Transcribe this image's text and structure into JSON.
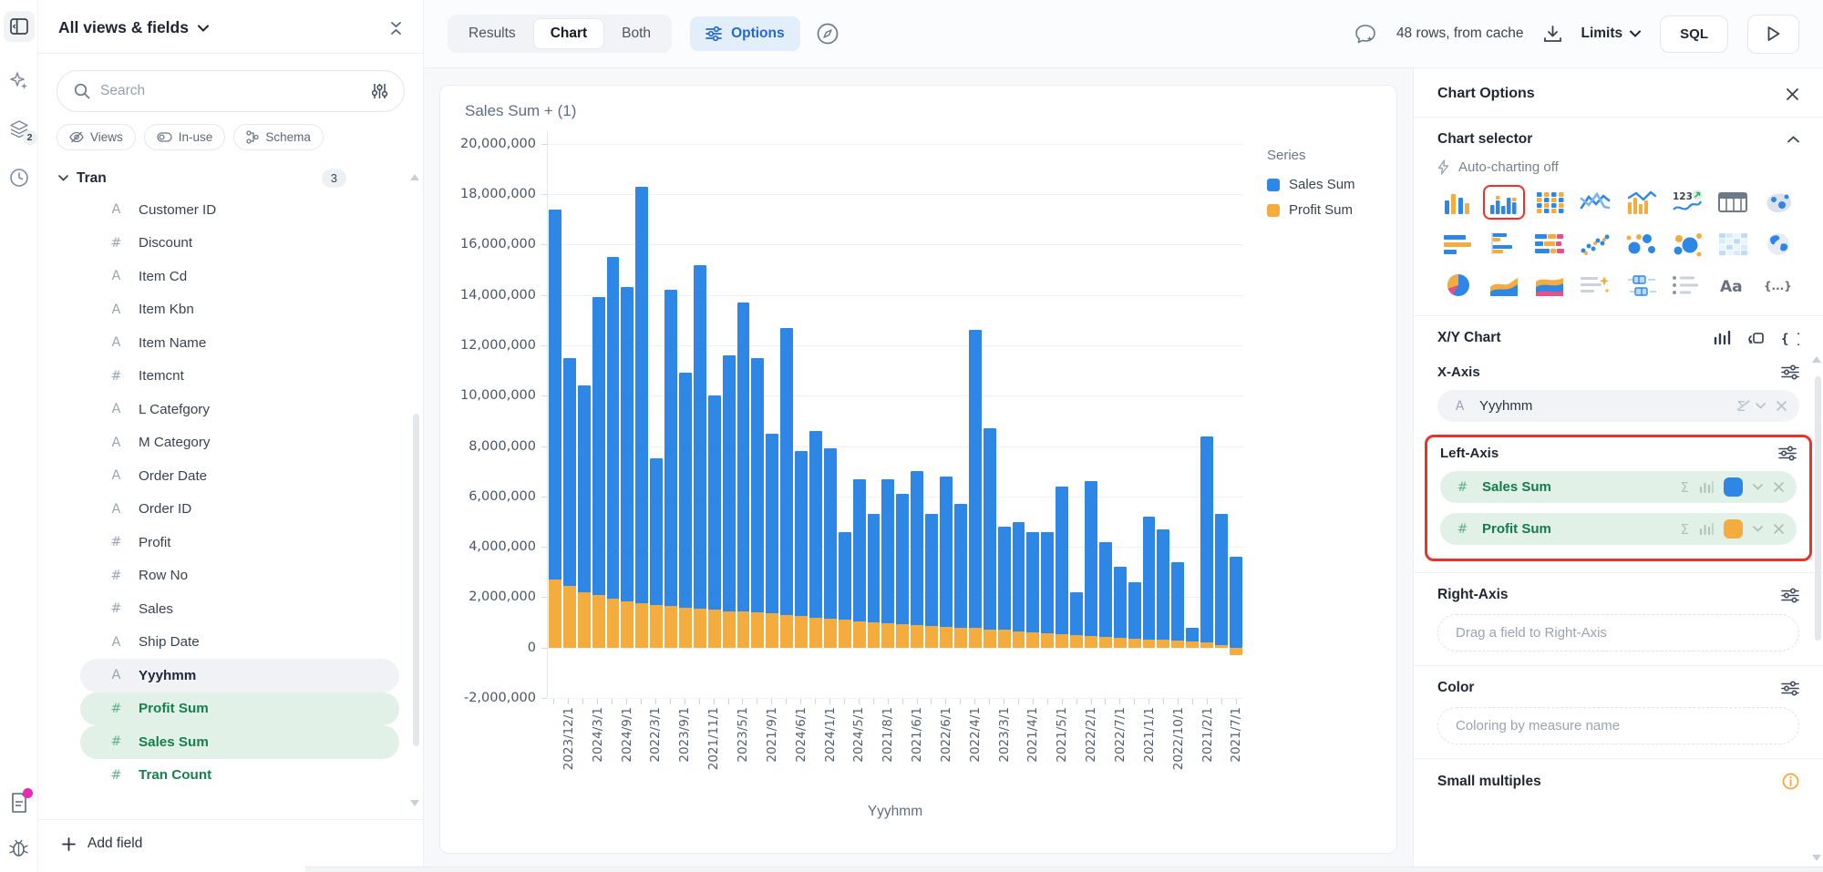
{
  "accent_colors": {
    "blue": "#2E87E5",
    "orange": "#F4AC3E",
    "green": "#157A4A",
    "annotation_red": "#E8332C"
  },
  "rail": {
    "icons": [
      "panel-toggle",
      "ai-sparkles",
      "layers",
      "history-clock",
      "notes-doc",
      "debug-bug"
    ],
    "layers_badge": "2"
  },
  "sidebar": {
    "title": "All views & fields",
    "search": {
      "placeholder": "Search"
    },
    "chips": [
      {
        "icon": "eye-off-icon",
        "label": "Views"
      },
      {
        "icon": "toggle-icon",
        "label": "In-use"
      },
      {
        "icon": "schema-icon",
        "label": "Schema"
      }
    ],
    "group": {
      "name": "Tran",
      "badge": "3"
    },
    "fields": [
      {
        "type": "text",
        "label": "Customer ID",
        "state": "normal"
      },
      {
        "type": "number",
        "label": "Discount",
        "state": "normal"
      },
      {
        "type": "text",
        "label": "Item Cd",
        "state": "normal"
      },
      {
        "type": "text",
        "label": "Item Kbn",
        "state": "normal"
      },
      {
        "type": "text",
        "label": "Item Name",
        "state": "normal"
      },
      {
        "type": "number",
        "label": "Itemcnt",
        "state": "normal"
      },
      {
        "type": "text",
        "label": "L Catefgory",
        "state": "normal"
      },
      {
        "type": "text",
        "label": "M Category",
        "state": "normal"
      },
      {
        "type": "text",
        "label": "Order Date",
        "state": "normal"
      },
      {
        "type": "text",
        "label": "Order ID",
        "state": "normal"
      },
      {
        "type": "number",
        "label": "Profit",
        "state": "normal"
      },
      {
        "type": "number",
        "label": "Row No",
        "state": "normal"
      },
      {
        "type": "number",
        "label": "Sales",
        "state": "normal"
      },
      {
        "type": "text",
        "label": "Ship Date",
        "state": "normal"
      },
      {
        "type": "text",
        "label": "Yyyhmm",
        "state": "selected-dimension"
      },
      {
        "type": "number",
        "label": "Profit Sum",
        "state": "selected-measure"
      },
      {
        "type": "number",
        "label": "Sales Sum",
        "state": "selected-measure"
      },
      {
        "type": "number",
        "label": "Tran Count",
        "state": "measure"
      }
    ],
    "add_field_label": "Add field"
  },
  "topbar": {
    "view_tabs": [
      "Results",
      "Chart",
      "Both"
    ],
    "active_tab": "Chart",
    "options_label": "Options",
    "status": "48 rows, from cache",
    "limits_label": "Limits",
    "sql_label": "SQL"
  },
  "chart_data": {
    "type": "bar",
    "bar_mode": "overlay",
    "title": "Sales Sum + (1)",
    "xlabel": "Yyyhmm",
    "ylabel": "",
    "ylim": [
      -2000000,
      20000000
    ],
    "ytick_step": 2000000,
    "grid": true,
    "legend_title": "Series",
    "legend_position": "right",
    "x_tick_labels": [
      "2023/12/1",
      "2024/3/1",
      "2024/9/1",
      "2022/3/1",
      "2023/9/1",
      "2021/11/1",
      "2023/5/1",
      "2021/9/1",
      "2024/6/1",
      "2024/1/1",
      "2024/5/1",
      "2021/8/1",
      "2021/6/1",
      "2022/6/1",
      "2022/4/1",
      "2023/3/1",
      "2021/4/1",
      "2021/5/1",
      "2022/2/1",
      "2022/7/1",
      "2021/1/1",
      "2022/10/1",
      "2021/2/1",
      "2021/7/1"
    ],
    "x_tick_note": "labels shown under every other bar (48 bars total, sorted by Profit Sum desc)",
    "series": [
      {
        "name": "Sales Sum",
        "color": "#2E87E5",
        "values": [
          17400000,
          11500000,
          10400000,
          13900000,
          15500000,
          14300000,
          18300000,
          7500000,
          14200000,
          10900000,
          15200000,
          10000000,
          11600000,
          13700000,
          11500000,
          8500000,
          12700000,
          7800000,
          8600000,
          7900000,
          4600000,
          6700000,
          5300000,
          6700000,
          6100000,
          7000000,
          5300000,
          6800000,
          5700000,
          12600000,
          8700000,
          4800000,
          5000000,
          4600000,
          4600000,
          6400000,
          2200000,
          6600000,
          4200000,
          3200000,
          2600000,
          5200000,
          4700000,
          3400000,
          800000,
          8400000,
          5300000,
          3600000
        ]
      },
      {
        "name": "Profit Sum",
        "color": "#F4AC3E",
        "values": [
          2700000,
          2450000,
          2200000,
          2100000,
          1950000,
          1850000,
          1750000,
          1700000,
          1650000,
          1600000,
          1550000,
          1500000,
          1450000,
          1420000,
          1400000,
          1350000,
          1300000,
          1250000,
          1200000,
          1150000,
          1100000,
          1050000,
          1000000,
          970000,
          930000,
          900000,
          870000,
          830000,
          800000,
          770000,
          730000,
          700000,
          650000,
          600000,
          570000,
          530000,
          500000,
          470000,
          430000,
          400000,
          370000,
          330000,
          300000,
          270000,
          230000,
          200000,
          100000,
          -300000
        ]
      }
    ]
  },
  "options_panel": {
    "title": "Chart Options",
    "chart_selector": {
      "label": "Chart selector",
      "auto_charting": "Auto-charting off",
      "selected_index": 1,
      "types": [
        "bar-grouped",
        "bar-vertical",
        "bar-stacked-grid",
        "line",
        "bar-line-combo",
        "kpi-number",
        "table",
        "map-bubbles",
        "bar-horizontal",
        "bar-horizontal-grouped",
        "bar-horizontal-stacked",
        "scatter",
        "bubble",
        "bubble-packed",
        "pivot-heatmap",
        "world-map",
        "pie",
        "area",
        "area-stacked",
        "text-summary",
        "boxplot",
        "list",
        "text-aa",
        "json"
      ]
    },
    "xy_chart_label": "X/Y Chart",
    "x_axis": {
      "label": "X-Axis",
      "field": "Yyyhmm",
      "field_type": "text"
    },
    "left_axis": {
      "label": "Left-Axis",
      "fields": [
        {
          "name": "Sales Sum",
          "type": "number",
          "color": "#2E87E5"
        },
        {
          "name": "Profit Sum",
          "type": "number",
          "color": "#F4AC3E"
        }
      ]
    },
    "right_axis": {
      "label": "Right-Axis",
      "placeholder": "Drag a field to Right-Axis"
    },
    "color": {
      "label": "Color",
      "placeholder": "Coloring by measure name"
    },
    "small_multiples_label": "Small multiples"
  }
}
